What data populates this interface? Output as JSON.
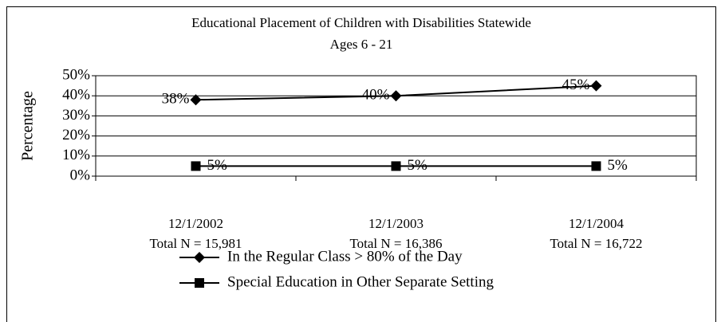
{
  "chart_data": {
    "type": "line",
    "title": "Educational Placement of Children with Disabilities Statewide",
    "subtitle": "Ages 6 - 21",
    "y_label": "Percentage",
    "categories": [
      "12/1/2002",
      "12/1/2003",
      "12/1/2004"
    ],
    "category_totals": [
      "Total N = 15,981",
      "Total N = 16,386",
      "Total N = 16,722"
    ],
    "series": [
      {
        "name": "In the Regular Class > 80% of the Day",
        "color": "#000000",
        "marker": "diamond",
        "values": [
          38,
          40,
          45
        ],
        "value_labels": [
          "38%",
          "40%",
          "45%"
        ]
      },
      {
        "name": "Special Education in Other Separate Setting",
        "color": "#000000",
        "marker": "square",
        "values": [
          5,
          5,
          5
        ],
        "value_labels": [
          "5%",
          "5%",
          "5%"
        ]
      }
    ],
    "ylim": [
      0,
      50
    ],
    "yticks": [
      {
        "value": 0,
        "label": "0%"
      },
      {
        "value": 10,
        "label": "10%"
      },
      {
        "value": 20,
        "label": "20%"
      },
      {
        "value": 30,
        "label": "30%"
      },
      {
        "value": 40,
        "label": "40%"
      },
      {
        "value": 50,
        "label": "50%"
      }
    ],
    "grid": true
  }
}
